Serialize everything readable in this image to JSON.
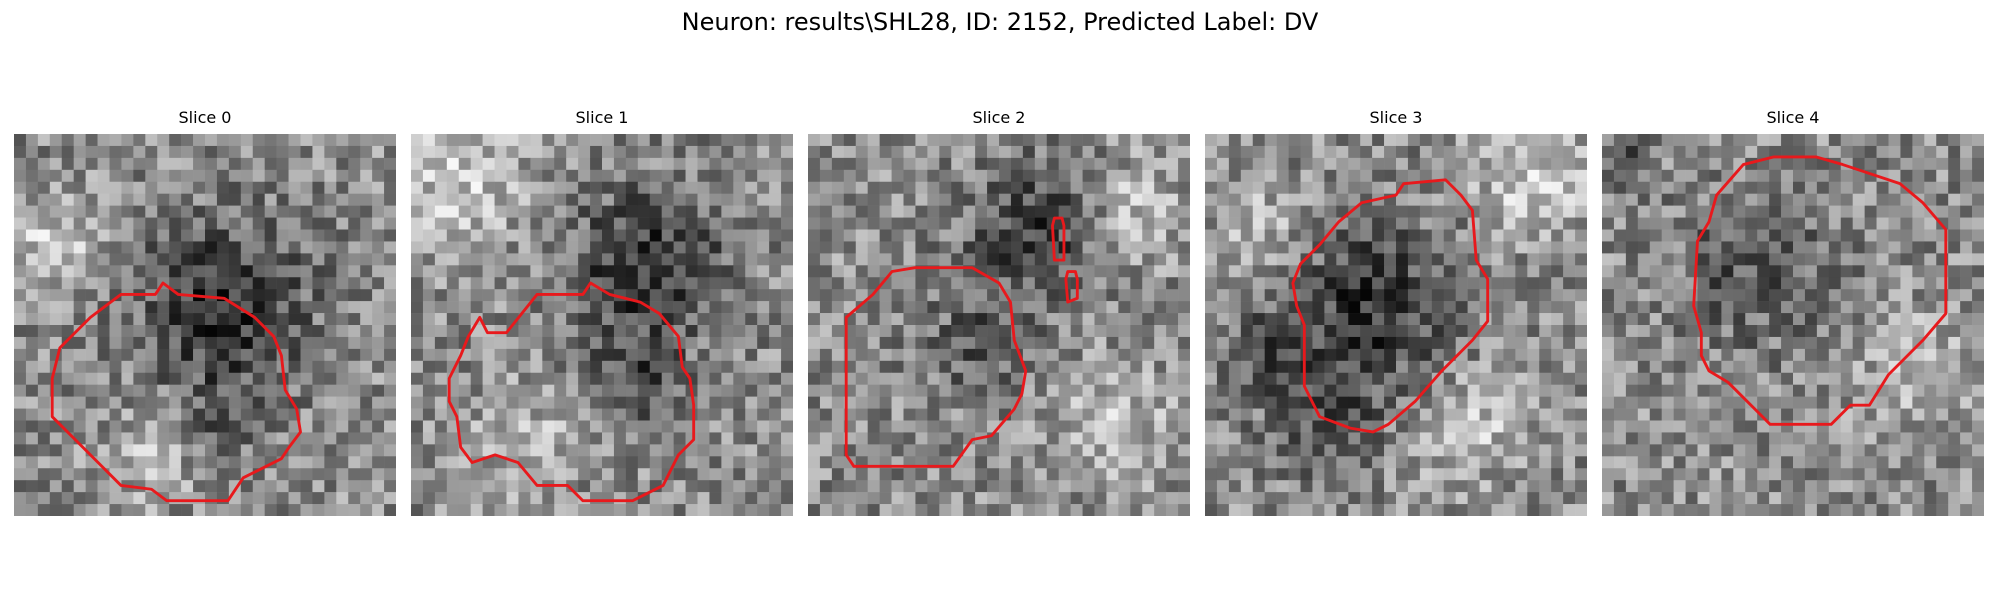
{
  "title": "Neuron: results\\SHL28, ID: 2152, Predicted Label: DV",
  "outline_color": "#e8191c",
  "panels": [
    {
      "title": "Slice 0",
      "seed": 11,
      "dark_blobs": [
        [
          0.55,
          0.45,
          0.22,
          0.85
        ],
        [
          0.55,
          0.75,
          0.1,
          0.4
        ]
      ],
      "light_blobs": [
        [
          0.1,
          0.3,
          0.12,
          0.55
        ],
        [
          0.35,
          0.85,
          0.12,
          0.35
        ]
      ],
      "outline": [
        [
          0.28,
          0.42
        ],
        [
          0.37,
          0.42
        ],
        [
          0.39,
          0.39
        ],
        [
          0.43,
          0.42
        ],
        [
          0.55,
          0.43
        ],
        [
          0.63,
          0.48
        ],
        [
          0.68,
          0.53
        ],
        [
          0.7,
          0.58
        ],
        [
          0.71,
          0.67
        ],
        [
          0.74,
          0.72
        ],
        [
          0.75,
          0.78
        ],
        [
          0.72,
          0.82
        ],
        [
          0.7,
          0.85
        ],
        [
          0.64,
          0.88
        ],
        [
          0.6,
          0.9
        ],
        [
          0.56,
          0.96
        ],
        [
          0.4,
          0.96
        ],
        [
          0.36,
          0.93
        ],
        [
          0.28,
          0.92
        ],
        [
          0.22,
          0.86
        ],
        [
          0.17,
          0.81
        ],
        [
          0.1,
          0.74
        ],
        [
          0.1,
          0.64
        ],
        [
          0.12,
          0.56
        ],
        [
          0.2,
          0.48
        ]
      ]
    },
    {
      "title": "Slice 1",
      "seed": 23,
      "dark_blobs": [
        [
          0.62,
          0.35,
          0.2,
          0.85
        ],
        [
          0.58,
          0.65,
          0.12,
          0.5
        ]
      ],
      "light_blobs": [
        [
          0.12,
          0.12,
          0.18,
          0.5
        ],
        [
          0.3,
          0.8,
          0.14,
          0.35
        ]
      ],
      "outline": [
        [
          0.15,
          0.53
        ],
        [
          0.18,
          0.48
        ],
        [
          0.2,
          0.52
        ],
        [
          0.25,
          0.52
        ],
        [
          0.33,
          0.42
        ],
        [
          0.45,
          0.42
        ],
        [
          0.47,
          0.39
        ],
        [
          0.52,
          0.42
        ],
        [
          0.6,
          0.44
        ],
        [
          0.65,
          0.47
        ],
        [
          0.7,
          0.53
        ],
        [
          0.71,
          0.61
        ],
        [
          0.73,
          0.64
        ],
        [
          0.74,
          0.71
        ],
        [
          0.74,
          0.8
        ],
        [
          0.7,
          0.84
        ],
        [
          0.66,
          0.92
        ],
        [
          0.58,
          0.96
        ],
        [
          0.45,
          0.96
        ],
        [
          0.41,
          0.92
        ],
        [
          0.33,
          0.92
        ],
        [
          0.28,
          0.86
        ],
        [
          0.22,
          0.84
        ],
        [
          0.16,
          0.86
        ],
        [
          0.13,
          0.82
        ],
        [
          0.12,
          0.74
        ],
        [
          0.1,
          0.7
        ],
        [
          0.1,
          0.64
        ],
        [
          0.13,
          0.58
        ]
      ]
    },
    {
      "title": "Slice 2",
      "seed": 37,
      "dark_blobs": [
        [
          0.6,
          0.25,
          0.18,
          0.7
        ],
        [
          0.45,
          0.55,
          0.14,
          0.45
        ]
      ],
      "light_blobs": [
        [
          0.85,
          0.2,
          0.12,
          0.5
        ],
        [
          0.8,
          0.75,
          0.16,
          0.4
        ]
      ],
      "outline": [
        [
          0.1,
          0.48
        ],
        [
          0.17,
          0.42
        ],
        [
          0.22,
          0.36
        ],
        [
          0.28,
          0.35
        ],
        [
          0.43,
          0.35
        ],
        [
          0.5,
          0.39
        ],
        [
          0.53,
          0.44
        ],
        [
          0.54,
          0.54
        ],
        [
          0.57,
          0.62
        ],
        [
          0.56,
          0.68
        ],
        [
          0.54,
          0.72
        ],
        [
          0.48,
          0.79
        ],
        [
          0.43,
          0.8
        ],
        [
          0.38,
          0.87
        ],
        [
          0.12,
          0.87
        ],
        [
          0.1,
          0.84
        ],
        [
          0.1,
          0.56
        ]
      ],
      "extra_outlines": [
        [
          [
            0.645,
            0.22
          ],
          [
            0.665,
            0.22
          ],
          [
            0.67,
            0.24
          ],
          [
            0.67,
            0.33
          ],
          [
            0.645,
            0.33
          ],
          [
            0.64,
            0.24
          ]
        ],
        [
          [
            0.68,
            0.36
          ],
          [
            0.7,
            0.36
          ],
          [
            0.705,
            0.38
          ],
          [
            0.705,
            0.43
          ],
          [
            0.68,
            0.44
          ],
          [
            0.675,
            0.38
          ]
        ]
      ]
    },
    {
      "title": "Slice 3",
      "seed": 51,
      "dark_blobs": [
        [
          0.45,
          0.45,
          0.22,
          0.8
        ],
        [
          0.3,
          0.75,
          0.15,
          0.5
        ],
        [
          0.15,
          0.55,
          0.1,
          0.45
        ]
      ],
      "light_blobs": [
        [
          0.85,
          0.12,
          0.15,
          0.55
        ],
        [
          0.7,
          0.75,
          0.16,
          0.45
        ],
        [
          0.15,
          0.25,
          0.12,
          0.4
        ]
      ],
      "outline": [
        [
          0.25,
          0.34
        ],
        [
          0.3,
          0.29
        ],
        [
          0.35,
          0.23
        ],
        [
          0.41,
          0.18
        ],
        [
          0.5,
          0.16
        ],
        [
          0.52,
          0.13
        ],
        [
          0.63,
          0.12
        ],
        [
          0.67,
          0.16
        ],
        [
          0.7,
          0.2
        ],
        [
          0.71,
          0.33
        ],
        [
          0.74,
          0.38
        ],
        [
          0.74,
          0.49
        ],
        [
          0.7,
          0.54
        ],
        [
          0.62,
          0.62
        ],
        [
          0.55,
          0.7
        ],
        [
          0.48,
          0.76
        ],
        [
          0.44,
          0.78
        ],
        [
          0.38,
          0.77
        ],
        [
          0.3,
          0.74
        ],
        [
          0.28,
          0.7
        ],
        [
          0.26,
          0.66
        ],
        [
          0.26,
          0.5
        ],
        [
          0.24,
          0.45
        ],
        [
          0.23,
          0.39
        ]
      ]
    },
    {
      "title": "Slice 4",
      "seed": 67,
      "dark_blobs": [
        [
          0.4,
          0.35,
          0.2,
          0.5
        ],
        [
          0.05,
          0.07,
          0.06,
          0.6
        ]
      ],
      "light_blobs": [
        [
          0.8,
          0.6,
          0.15,
          0.35
        ]
      ],
      "outline": [
        [
          0.37,
          0.08
        ],
        [
          0.45,
          0.06
        ],
        [
          0.56,
          0.06
        ],
        [
          0.63,
          0.08
        ],
        [
          0.78,
          0.13
        ],
        [
          0.84,
          0.18
        ],
        [
          0.9,
          0.25
        ],
        [
          0.9,
          0.47
        ],
        [
          0.84,
          0.54
        ],
        [
          0.75,
          0.63
        ],
        [
          0.7,
          0.71
        ],
        [
          0.65,
          0.71
        ],
        [
          0.6,
          0.76
        ],
        [
          0.44,
          0.76
        ],
        [
          0.4,
          0.72
        ],
        [
          0.33,
          0.65
        ],
        [
          0.28,
          0.62
        ],
        [
          0.26,
          0.58
        ],
        [
          0.26,
          0.52
        ],
        [
          0.24,
          0.45
        ],
        [
          0.25,
          0.28
        ],
        [
          0.28,
          0.23
        ],
        [
          0.3,
          0.16
        ]
      ]
    }
  ]
}
